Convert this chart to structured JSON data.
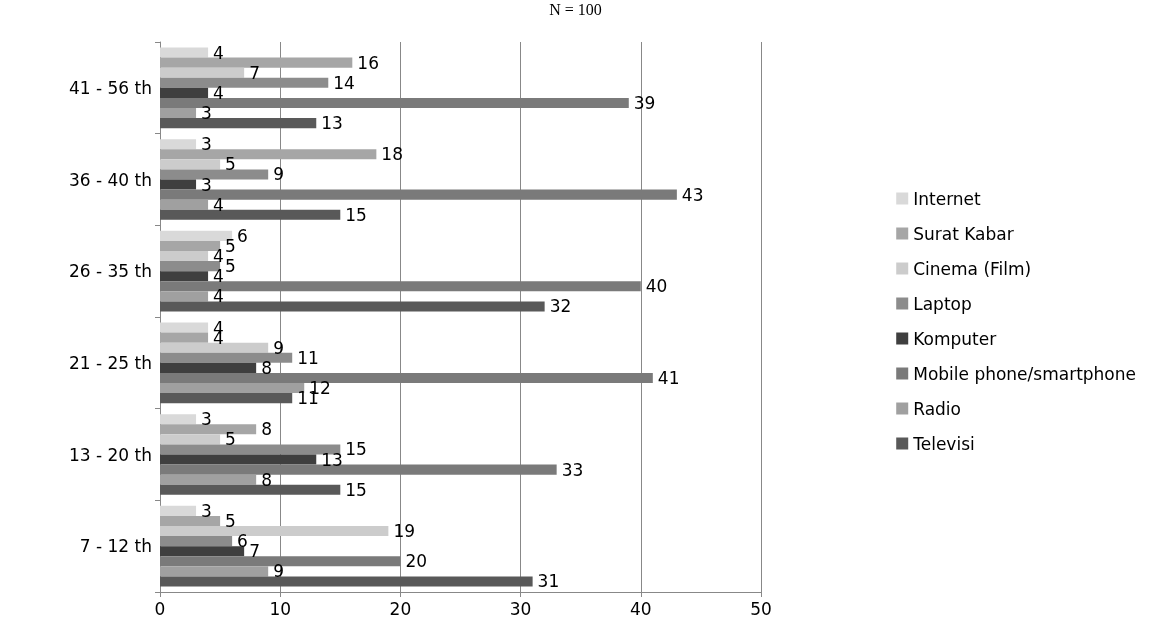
{
  "chart_data": {
    "type": "bar",
    "orientation": "horizontal",
    "title": "N = 100",
    "categories": [
      "41 - 56 th",
      "36 - 40 th",
      "26 - 35 th",
      "21 - 25 th",
      "13 - 20 th",
      "7 - 12 th"
    ],
    "series": [
      {
        "name": "Internet",
        "color": "#d9d9d9",
        "values": [
          4,
          3,
          6,
          4,
          3,
          3
        ]
      },
      {
        "name": "Surat Kabar",
        "color": "#a6a6a6",
        "values": [
          16,
          18,
          5,
          4,
          8,
          5
        ]
      },
      {
        "name": "Cinema (Film)",
        "color": "#cccccc",
        "values": [
          7,
          5,
          4,
          9,
          5,
          19
        ]
      },
      {
        "name": "Laptop",
        "color": "#8c8c8c",
        "values": [
          14,
          9,
          5,
          11,
          15,
          6
        ]
      },
      {
        "name": "Komputer",
        "color": "#3f3f3f",
        "values": [
          4,
          3,
          4,
          8,
          13,
          7
        ]
      },
      {
        "name": "Mobile phone/smartphone",
        "color": "#7a7a7a",
        "values": [
          39,
          43,
          40,
          41,
          33,
          20
        ]
      },
      {
        "name": "Radio",
        "color": "#a0a0a0",
        "values": [
          3,
          4,
          4,
          12,
          8,
          9
        ]
      },
      {
        "name": "Televisi",
        "color": "#595959",
        "values": [
          13,
          15,
          32,
          11,
          15,
          31
        ]
      }
    ],
    "xlim": [
      0,
      50
    ],
    "xticks": [
      0,
      10,
      20,
      30,
      40,
      50
    ],
    "grid": "x",
    "legend": "right",
    "data_labels": true
  }
}
